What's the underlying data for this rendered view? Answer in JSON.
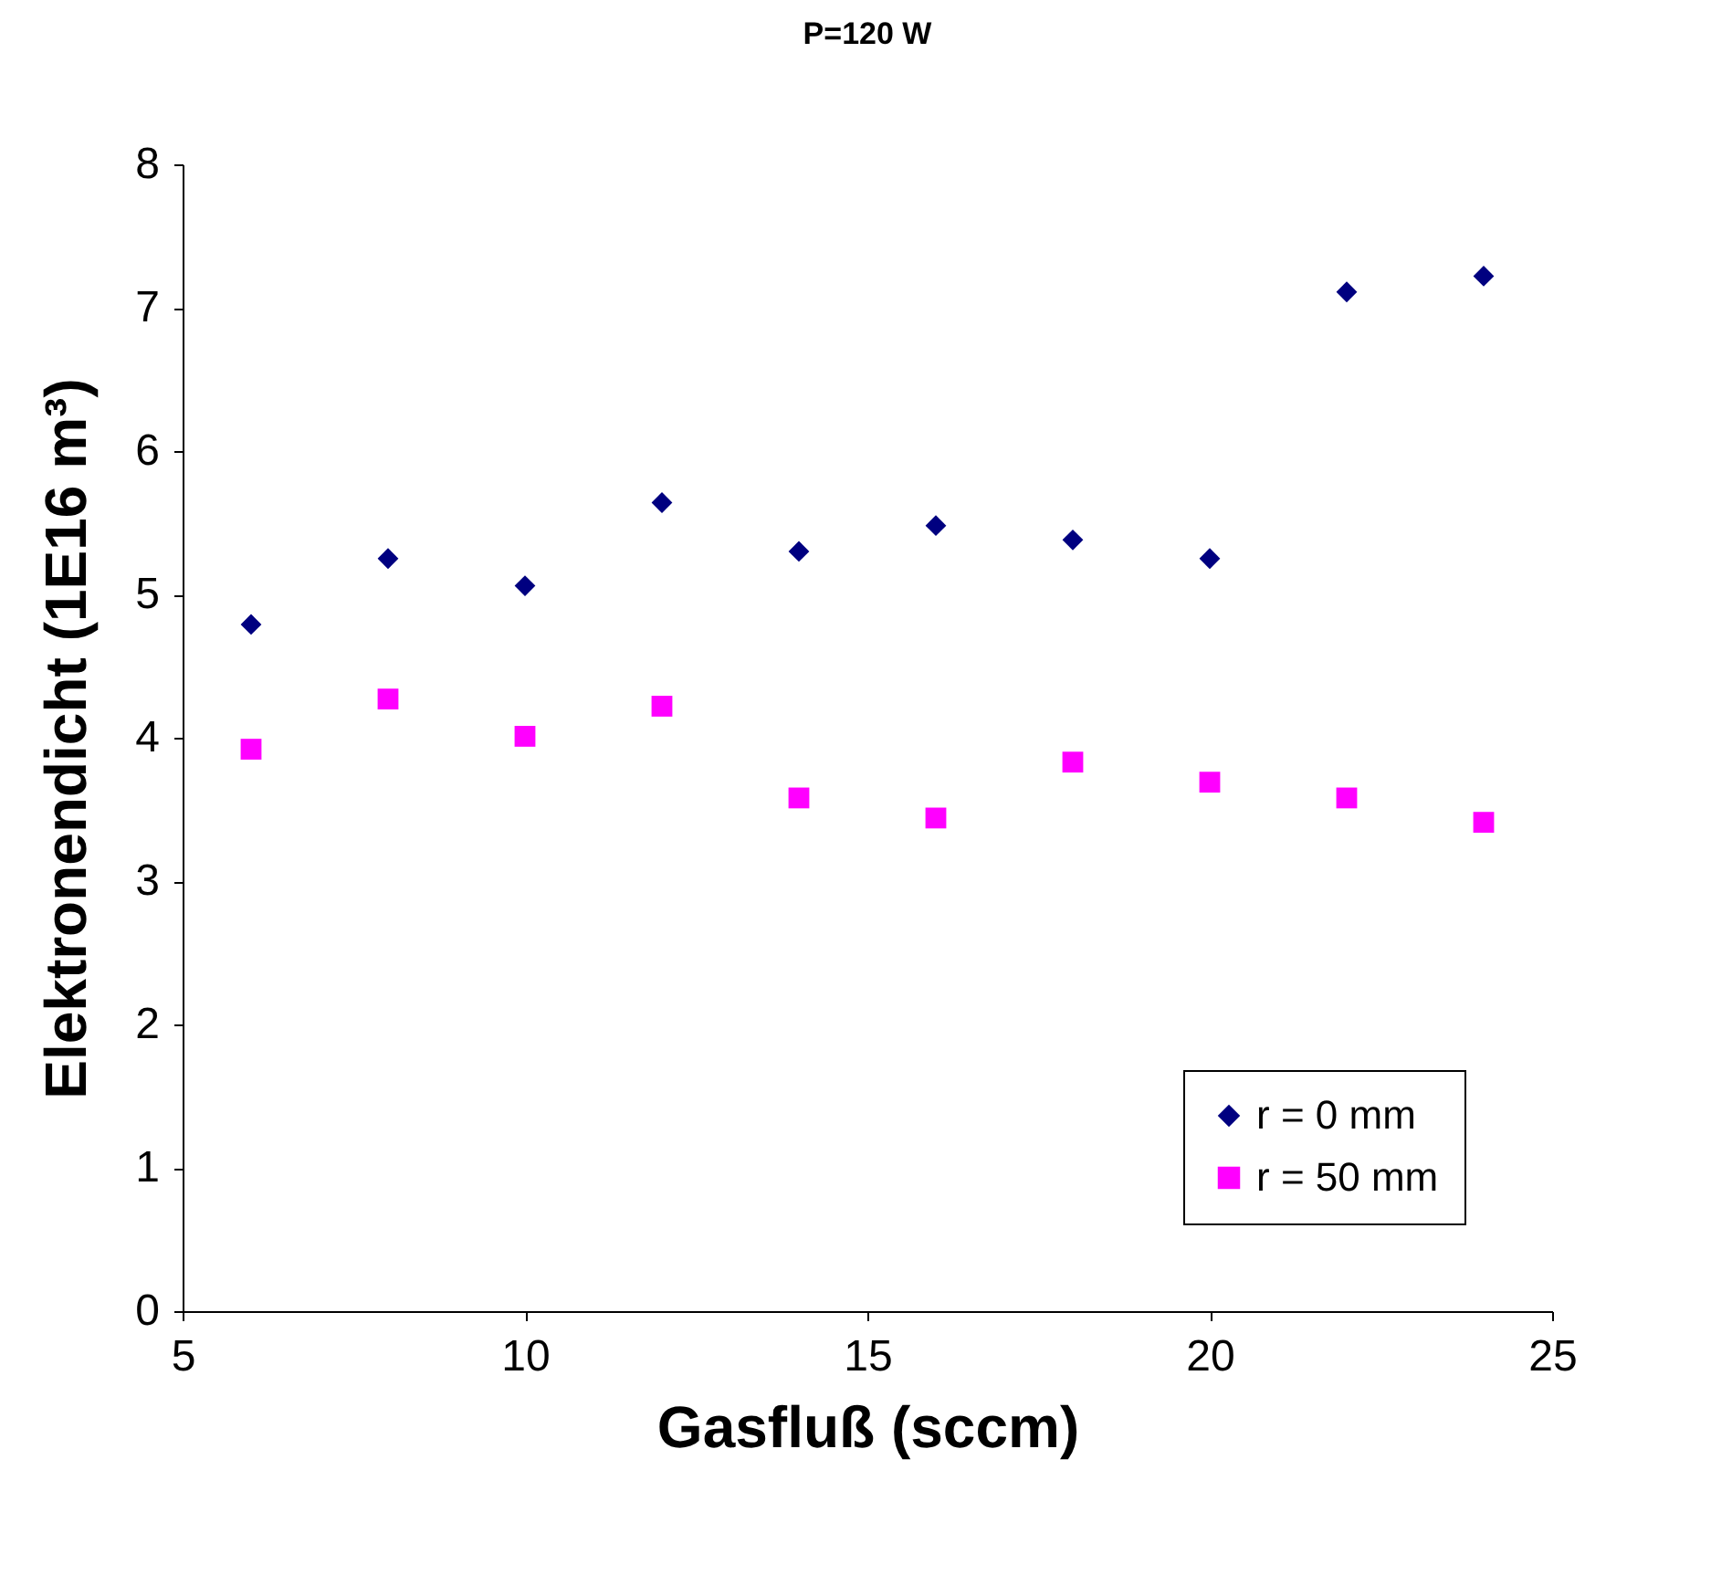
{
  "chart_data": {
    "type": "scatter",
    "title": "P=120 W",
    "xlabel": "Gasfluß (sccm)",
    "ylabel": "Elektronendicht (1E16 m³)",
    "x": [
      6,
      8,
      10,
      12,
      14,
      16,
      18,
      20,
      22,
      24
    ],
    "series": [
      {
        "name": "r = 0 mm",
        "color": "#000080",
        "marker": "diamond",
        "values": [
          4.79,
          5.25,
          5.06,
          5.64,
          5.3,
          5.48,
          5.38,
          5.25,
          7.11,
          7.22
        ]
      },
      {
        "name": "r = 50 mm",
        "color": "#ff00ff",
        "marker": "square",
        "values": [
          3.92,
          4.27,
          4.01,
          4.22,
          3.58,
          3.44,
          3.83,
          3.69,
          3.58,
          3.41
        ]
      }
    ],
    "xlim": [
      5,
      25
    ],
    "xticks": [
      5,
      10,
      15,
      20,
      25
    ],
    "ylim": [
      0,
      8
    ],
    "yticks": [
      0,
      1,
      2,
      3,
      4,
      5,
      6,
      7,
      8
    ],
    "grid": false,
    "legend": "bottom right"
  }
}
